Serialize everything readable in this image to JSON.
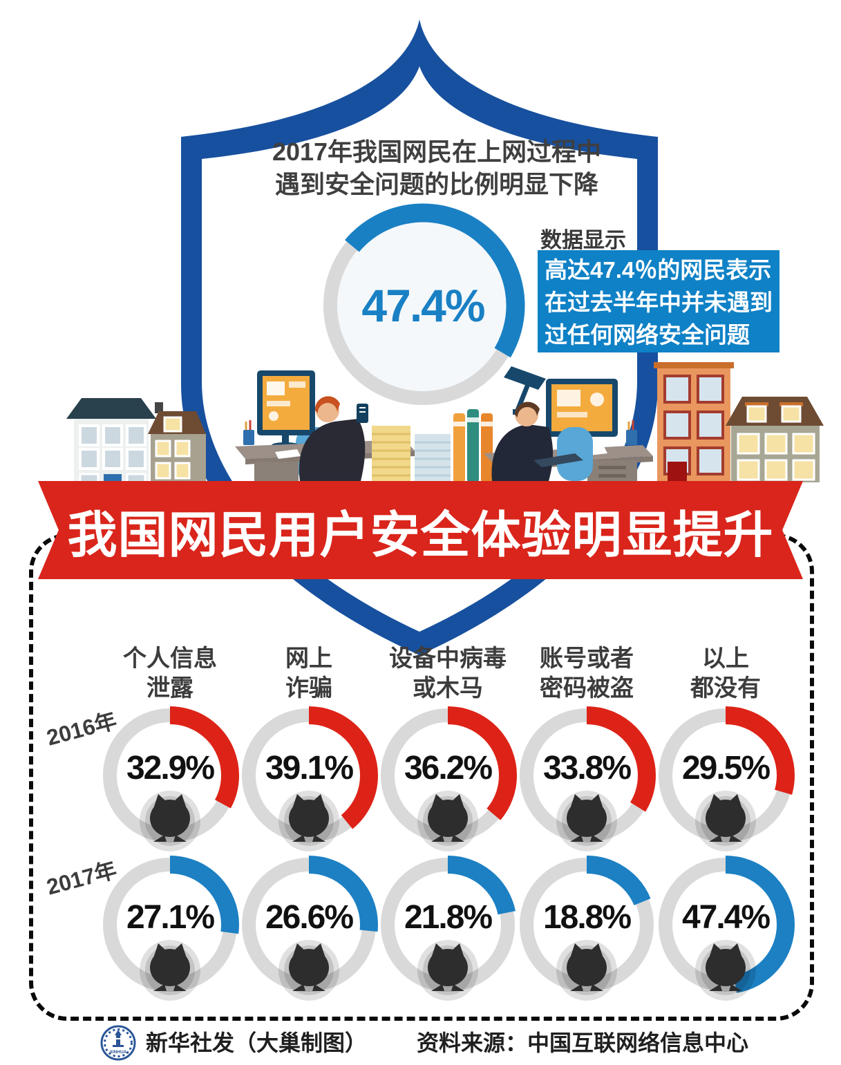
{
  "header": {
    "intro_line1": "2017年我国网民在上网过程中",
    "intro_line2": "遇到安全问题的比例明显下降",
    "data_label": "数据显示",
    "callout_text": "高达47.4％的网民表示\n在过去半年中并未遇到\n过任何网络安全问题",
    "callout_bg": "#0f81c6"
  },
  "banner": {
    "title": "我国网民用户安全体验明显提升",
    "bg": "#d9251b"
  },
  "colors": {
    "shield_blue": "#17509e",
    "accent_blue": "#1a80c4",
    "accent_red": "#dd2317",
    "ring_gray": "#d9d9d9",
    "owl_dark": "#2d2d2d"
  },
  "chart_data": [
    {
      "type": "donut",
      "title": "2017年我国网民在上网过程中遇到安全问题的比例明显下降",
      "label": "47.4%",
      "percent": 47.4,
      "start_angle_deg": -50,
      "color": "#1a80c4",
      "annotation": "高达47.4％的网民表示在过去半年中并未遇到过任何网络安全问题"
    },
    {
      "type": "donut-grid",
      "title": "我国网民用户安全体验明显提升",
      "categories": [
        "个人信息\n泄露",
        "网上\n诈骗",
        "设备中病毒\n或木马",
        "账号或者\n密码被盗",
        "以上\n都没有"
      ],
      "series": [
        {
          "name": "2016年",
          "color": "#dd2317",
          "values": [
            32.9,
            39.1,
            36.2,
            33.8,
            29.5
          ]
        },
        {
          "name": "2017年",
          "color": "#1c80c3",
          "values": [
            27.1,
            26.6,
            21.8,
            18.8,
            47.4
          ]
        }
      ],
      "value_suffix": "%",
      "legend_position": "row-labels-left",
      "grid": false
    }
  ],
  "footer": {
    "logo_text": "XINHUA",
    "credit": "新华社发（大巢制图）",
    "source": "资料来源：中国互联网络信息中心"
  }
}
